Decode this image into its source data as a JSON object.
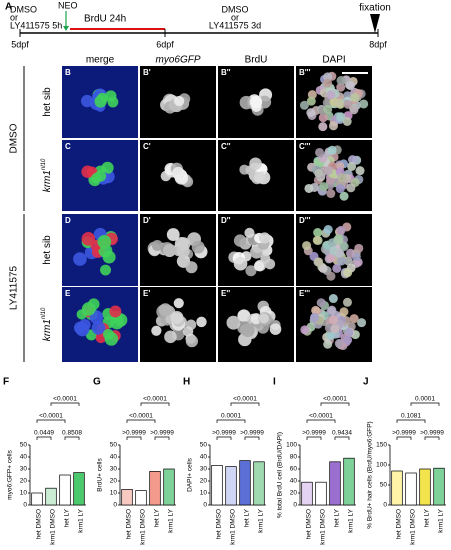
{
  "figure": {
    "timeline": {
      "letter": "A",
      "start_treat": [
        "DMSO",
        "or",
        "LY411575 5h"
      ],
      "neo": "NEO",
      "brdu": "BrdU 24h",
      "mid_treat": [
        "DMSO",
        "or",
        "LY411575 3d"
      ],
      "fixation": "fixation",
      "days": [
        "5dpf",
        "6dpf",
        "8dpf"
      ]
    },
    "columns": [
      "merge",
      "myo6GFP",
      "BrdU",
      "DAPI"
    ],
    "groups": [
      {
        "label": "DMSO",
        "rows": [
          {
            "genotype": "het sib",
            "panels": [
              "B",
              "B'",
              "B''",
              "B'''"
            ]
          },
          {
            "genotype": "krm1",
            "superscript": "nl10",
            "panels": [
              "C",
              "C'",
              "C''",
              "C'''"
            ]
          }
        ]
      },
      {
        "label": "LY411575",
        "rows": [
          {
            "genotype": "het sib",
            "panels": [
              "D",
              "D'",
              "D''",
              "D'''"
            ]
          },
          {
            "genotype": "krm1",
            "superscript": "nl10",
            "panels": [
              "E",
              "E'",
              "E''",
              "E'''"
            ]
          }
        ]
      }
    ],
    "stage": "8 dpf",
    "charts": [
      {
        "letter": "F",
        "ylabel": "myo6:GFP+ cells",
        "categories": [
          "het DMSO",
          "krm1 DMSO",
          "het LY",
          "krm1 LY"
        ],
        "values": [
          10,
          14,
          25,
          27
        ],
        "colors": [
          "#ffffff",
          "#c9ecd2",
          "#ffffff",
          "#4cc96d"
        ],
        "ylim": [
          0,
          50
        ],
        "yticks": [
          0,
          10,
          20,
          30,
          40,
          50
        ],
        "comparisons": [
          "0.0449",
          "0.8508",
          "<0.0001",
          "<0.0001"
        ]
      },
      {
        "letter": "G",
        "ylabel": "BrdU+ cells",
        "categories": [
          "het DMSO",
          "krm1 DMSO",
          "het LY",
          "krm1 LY"
        ],
        "values": [
          13,
          12,
          28,
          30
        ],
        "colors": [
          "#f8c9c1",
          "#ffffff",
          "#f39a8c",
          "#7fd19a"
        ],
        "ylim": [
          0,
          50
        ],
        "yticks": [
          0,
          10,
          20,
          30,
          40,
          50
        ],
        "comparisons": [
          ">0.9999",
          ">0.9999",
          "<0.0001",
          "<0.0001"
        ]
      },
      {
        "letter": "H",
        "ylabel": "DAPI+ cells",
        "categories": [
          "het DMSO",
          "krm1 DMSO",
          "het LY",
          "krm1 LY"
        ],
        "values": [
          33,
          32,
          37,
          36
        ],
        "colors": [
          "#ffffff",
          "#d0d6f5",
          "#5b6fd6",
          "#9fd9b0"
        ],
        "ylim": [
          0,
          50
        ],
        "yticks": [
          0,
          10,
          20,
          30,
          40,
          50
        ],
        "comparisons": [
          ">0.9999",
          ">0.9999",
          "0.0001",
          "<0.0001"
        ]
      },
      {
        "letter": "I",
        "ylabel": "% total BrdU cell (BrdU/DAPI)",
        "categories": [
          "het DMSO",
          "krm1 DMSO",
          "het LY",
          "krm1 LY"
        ],
        "values": [
          38,
          38,
          72,
          78
        ],
        "colors": [
          "#e4d3f2",
          "#ffffff",
          "#9b6fd0",
          "#7fd19a"
        ],
        "ylim": [
          0,
          100
        ],
        "yticks": [
          0,
          20,
          40,
          60,
          80,
          100
        ],
        "comparisons": [
          ">0.9999",
          "0.9434",
          "<0.0001",
          "<0.0001"
        ]
      },
      {
        "letter": "J",
        "ylabel": "% BrdU+ hair cells (BrdU/myo6:GFP)",
        "categories": [
          "het DMSO",
          "krm1 DMSO",
          "het LY",
          "krm1 LY"
        ],
        "values": [
          85,
          80,
          90,
          92
        ],
        "colors": [
          "#fff3a8",
          "#ffffff",
          "#f3e34c",
          "#7fd19a"
        ],
        "ylim": [
          0,
          150
        ],
        "yticks": [
          0,
          50,
          100,
          150
        ],
        "comparisons": [
          ">0.9999",
          ">0.9999",
          "0.1081",
          "0.0001"
        ]
      }
    ]
  }
}
